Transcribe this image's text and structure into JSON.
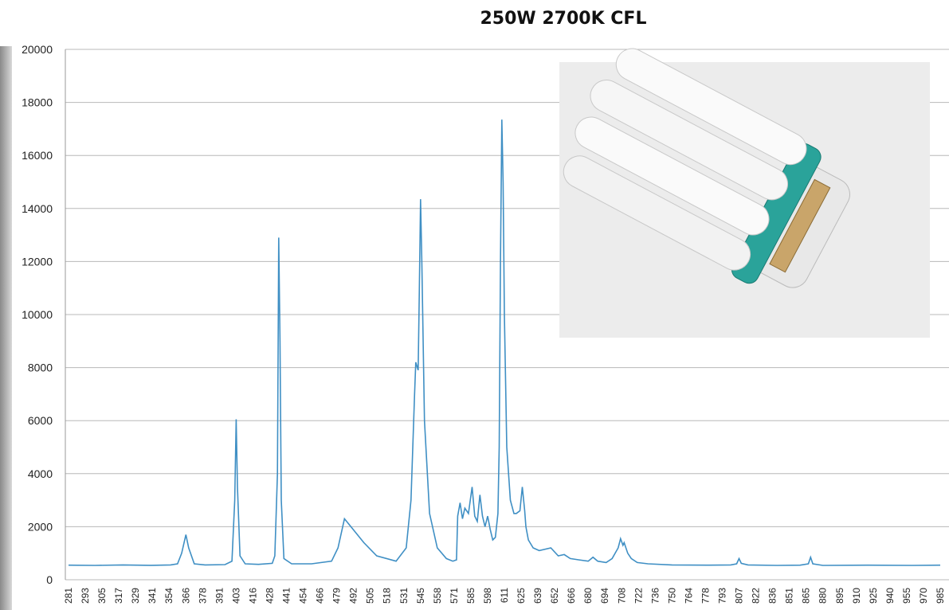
{
  "chart_data": {
    "type": "line",
    "title": "250W 2700K CFL",
    "x": [
      281,
      300,
      320,
      340,
      355,
      360,
      363,
      366,
      368,
      372,
      380,
      395,
      400,
      402,
      403,
      404,
      406,
      410,
      420,
      430,
      432,
      434,
      435,
      436,
      437,
      439,
      445,
      460,
      475,
      480,
      485,
      490,
      500,
      510,
      525,
      533,
      537,
      540,
      541,
      543,
      544,
      545,
      546,
      548,
      552,
      558,
      565,
      570,
      573,
      574,
      576,
      578,
      580,
      583,
      586,
      588,
      590,
      592,
      594,
      596,
      598,
      600,
      602,
      604,
      606,
      607,
      608,
      609,
      610,
      611,
      613,
      616,
      619,
      621,
      624,
      626,
      628,
      629,
      631,
      635,
      640,
      649,
      655,
      660,
      665,
      672,
      680,
      684,
      688,
      695,
      700,
      705,
      707,
      709,
      710,
      713,
      716,
      721,
      730,
      750,
      780,
      800,
      805,
      807,
      809,
      815,
      840,
      860,
      867,
      869,
      871,
      880,
      920,
      960,
      985
    ],
    "series": [
      {
        "name": "250W 2700K CFL",
        "color": "#3f8fc4",
        "values": [
          550,
          540,
          560,
          545,
          560,
          600,
          1000,
          1700,
          1200,
          600,
          560,
          570,
          700,
          3000,
          6050,
          3500,
          900,
          600,
          580,
          620,
          900,
          4000,
          12900,
          9000,
          3000,
          800,
          600,
          600,
          700,
          1200,
          2300,
          2000,
          1400,
          900,
          700,
          1200,
          3000,
          7000,
          8200,
          7900,
          11000,
          14350,
          12000,
          6000,
          2500,
          1200,
          800,
          700,
          750,
          2400,
          2900,
          2300,
          2700,
          2500,
          3500,
          2400,
          2200,
          3200,
          2400,
          2000,
          2400,
          1900,
          1500,
          1600,
          2500,
          5000,
          12000,
          17350,
          15000,
          10000,
          5000,
          3000,
          2500,
          2500,
          2600,
          3500,
          2600,
          2000,
          1500,
          1200,
          1100,
          1200,
          900,
          950,
          800,
          750,
          700,
          850,
          700,
          650,
          800,
          1200,
          1550,
          1300,
          1400,
          1000,
          800,
          650,
          600,
          560,
          550,
          560,
          600,
          800,
          620,
          560,
          540,
          550,
          600,
          850,
          600,
          540,
          550,
          540,
          550
        ]
      }
    ],
    "xlim": [
      281,
      985
    ],
    "xticks": [
      281,
      293,
      305,
      317,
      329,
      341,
      354,
      366,
      378,
      391,
      403,
      416,
      428,
      441,
      454,
      466,
      479,
      492,
      505,
      518,
      531,
      545,
      558,
      571,
      585,
      598,
      611,
      625,
      639,
      652,
      666,
      680,
      694,
      708,
      722,
      736,
      750,
      764,
      778,
      793,
      807,
      822,
      836,
      851,
      865,
      880,
      895,
      910,
      925,
      940,
      955,
      970,
      985
    ],
    "ylim": [
      0,
      20000
    ],
    "yticks": [
      0,
      2000,
      4000,
      6000,
      8000,
      10000,
      12000,
      14000,
      16000,
      18000,
      20000
    ],
    "grid": true
  }
}
